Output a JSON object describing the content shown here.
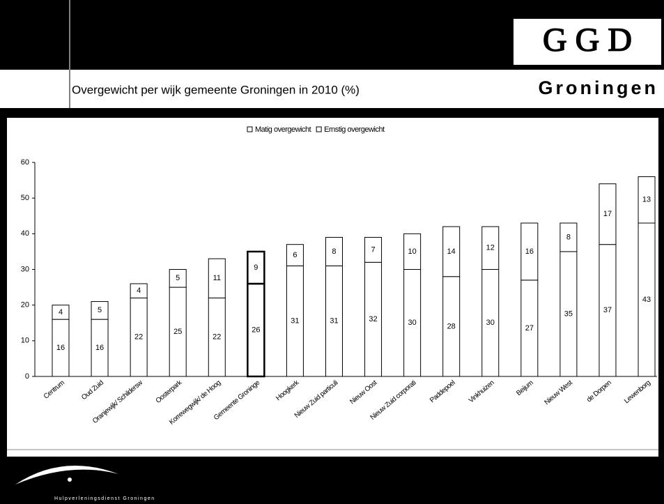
{
  "header": {
    "logo": "G G D",
    "logo_subtitle": "Groningen"
  },
  "footer": {
    "organization": "Hulpverleningsdienst Groningen"
  },
  "chart_data": {
    "type": "stacked_bar",
    "title": "Overgewicht per wijk gemeente Groningen in 2010 (%)",
    "categories": [
      "Centrum",
      "Oud Zuid",
      "Oranjewijk/ Schildersw",
      "Oosterpark",
      "Korrewegwijk/ de Hoog",
      "Gemeente Groninge",
      "Hoogkerk",
      "Nieuw Zuid particuli",
      "Nieuw Oost",
      "Nieuw Zuid corporati",
      "Paddepoel",
      "Vinkhuizen",
      "Beijum",
      "Nieuw West",
      "de Dorpen",
      "Lewenborg"
    ],
    "series": [
      {
        "name": "Matig overgewicht",
        "color": "#ffffff",
        "values": [
          16,
          16,
          22,
          25,
          22,
          26,
          31,
          31,
          32,
          30,
          28,
          30,
          27,
          35,
          37,
          43
        ]
      },
      {
        "name": "Ernstig overgewicht",
        "color": "#ffffff",
        "values": [
          4,
          5,
          4,
          5,
          11,
          9,
          6,
          8,
          7,
          10,
          14,
          12,
          16,
          8,
          17,
          13
        ]
      }
    ],
    "highlight": "Gemeente Groninge",
    "ylim": [
      0,
      60
    ],
    "yticks": [
      0,
      10,
      20,
      30,
      40,
      50,
      60
    ],
    "grid": false,
    "legend": "top"
  }
}
